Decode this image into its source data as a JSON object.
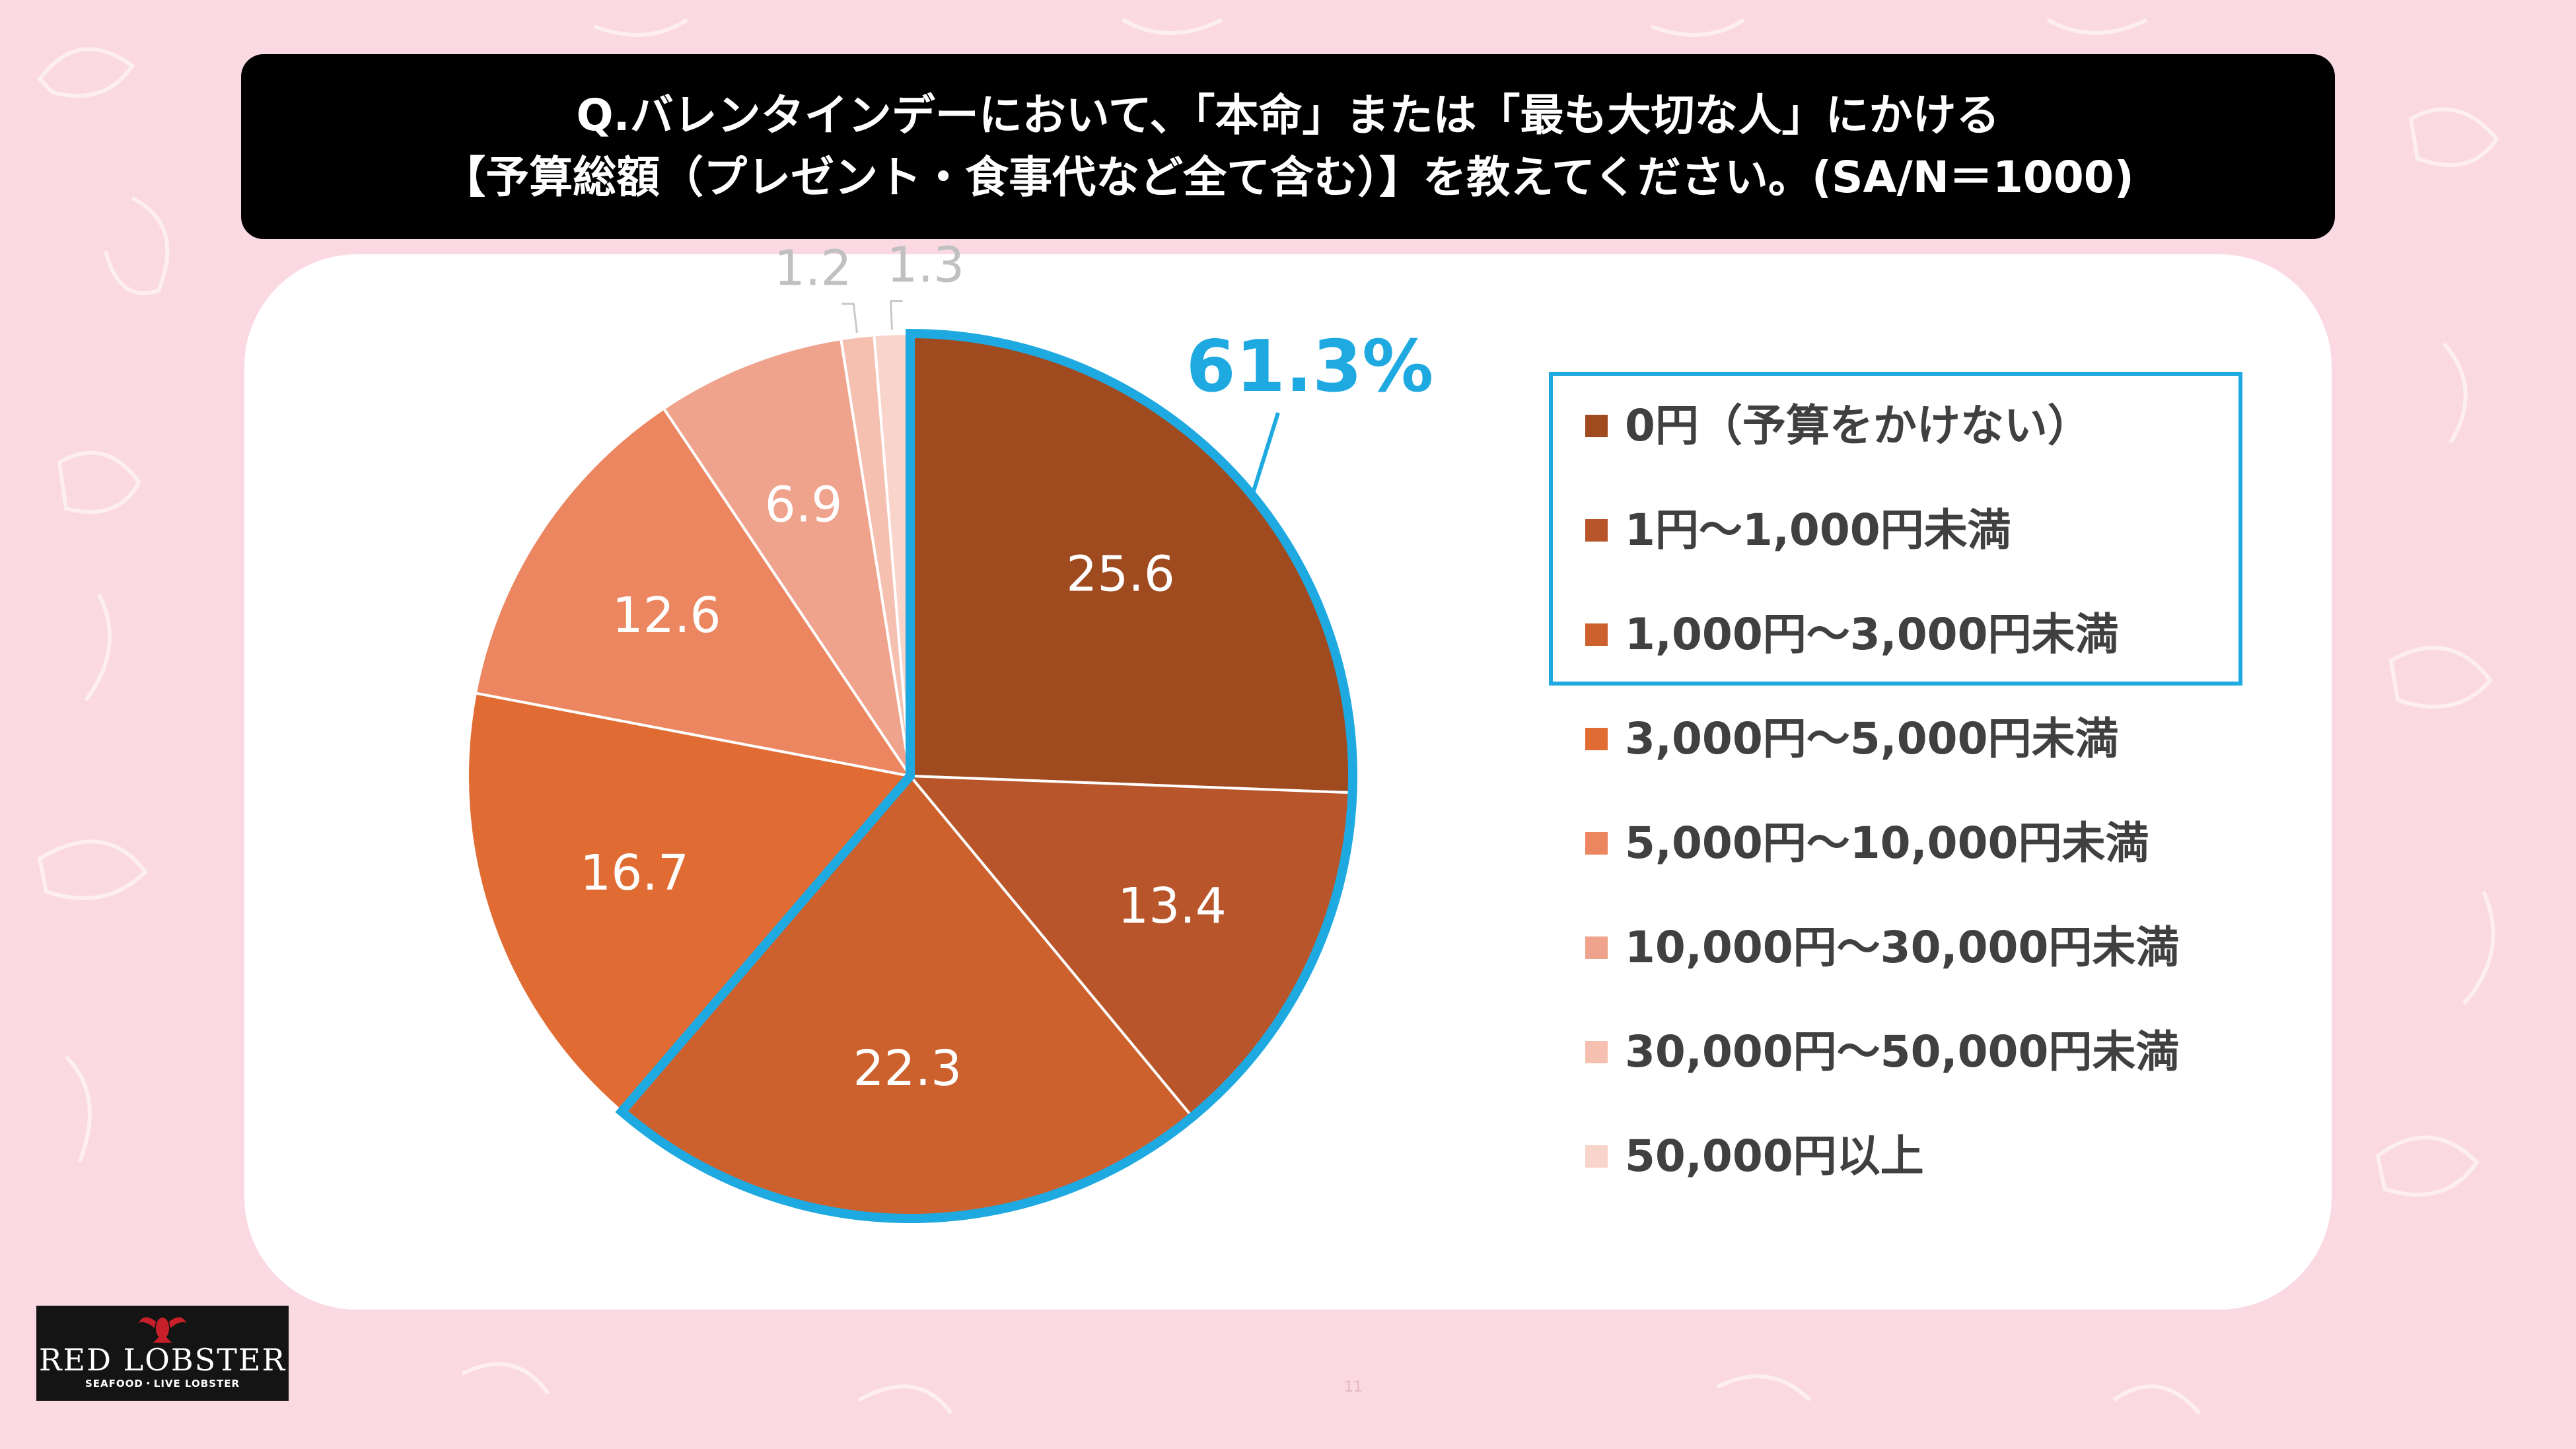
{
  "title": {
    "line1": "Q.バレンタインデーにおいて、「本命」または「最も大切な人」にかける",
    "line2": "【予算総額（プレゼント・食事代など全て含む）】を教えてください。(SA/N＝1000)"
  },
  "chart_data": {
    "type": "pie",
    "title": "Q.バレンタインデーにおいて、「本命」または「最も大切な人」にかける【予算総額（プレゼント・食事代など全て含む）】を教えてください。(SA/N＝1000)",
    "unit": "%",
    "start": "12 o'clock",
    "direction": "clockwise",
    "slices": [
      {
        "label": "0円（予算をかけない）",
        "value": 25.6,
        "display": "25.6",
        "color": "#a04a20"
      },
      {
        "label": "1円～1,000円未満",
        "value": 13.4,
        "display": "13.4",
        "color": "#b8552a"
      },
      {
        "label": "1,000円～3,000円未満",
        "value": 22.3,
        "display": "22.3",
        "color": "#cc612e"
      },
      {
        "label": "3,000円～5,000円未満",
        "value": 16.7,
        "display": "16.7",
        "color": "#e06c33"
      },
      {
        "label": "5,000円～10,000円未満",
        "value": 12.6,
        "display": "12.6",
        "color": "#ec8660"
      },
      {
        "label": "10,000円～30,000円未満",
        "value": 6.9,
        "display": "6.9",
        "color": "#f0a38c"
      },
      {
        "label": "30,000円～50,000円未満",
        "value": 1.2,
        "display": "1.2",
        "color": "#f5c0b0"
      },
      {
        "label": "50,000円以上",
        "value": 1.3,
        "display": "1.3",
        "color": "#f9d4ca"
      }
    ],
    "highlight": {
      "label": "61.3%",
      "covers": [
        "0円（予算をかけない）",
        "1円～1,000円未満",
        "1,000円～3,000円未満"
      ],
      "color": "#1ea9e1"
    },
    "legend_position": "right"
  },
  "logo": {
    "name": "RED LOBSTER",
    "sub": "SEAFOOD・LIVE LOBSTER"
  },
  "page_number": "11",
  "colors": {
    "background": "#fbd9e2",
    "title_bg": "#000000",
    "highlight": "#1ea9e1",
    "label_dark": "#ffffff",
    "label_light": "#c0c0c0"
  }
}
